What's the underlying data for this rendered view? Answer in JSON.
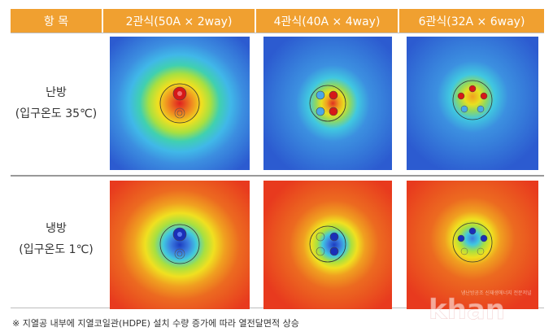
{
  "table": {
    "header": {
      "item": "항 목",
      "col1": "2관식(50A × 2way)",
      "col2": "4관식(40A × 4way)",
      "col3": "6관식(32A × 6way)"
    },
    "rows": [
      {
        "title": "난방",
        "subtitle": "(입구온도 35℃)",
        "mode": "heating"
      },
      {
        "title": "냉방",
        "subtitle": "(입구온도 1℃)",
        "mode": "cooling"
      }
    ]
  },
  "colors": {
    "header_bg": "#f0a030",
    "heat_hot": "#d62020",
    "heat_warm": "#f0e020",
    "heat_mid": "#40c8e0",
    "heat_cold": "#2c5bd0",
    "cool_outer": "#e83a1e"
  },
  "footnote": "※ 지열공 내부에 지열코일관(HDPE) 설치 수량 증가에 따라 열전달면적 상승",
  "watermark": {
    "logo": "khan",
    "tagline": "냉난방공조 신재생에너지 전문저널"
  }
}
